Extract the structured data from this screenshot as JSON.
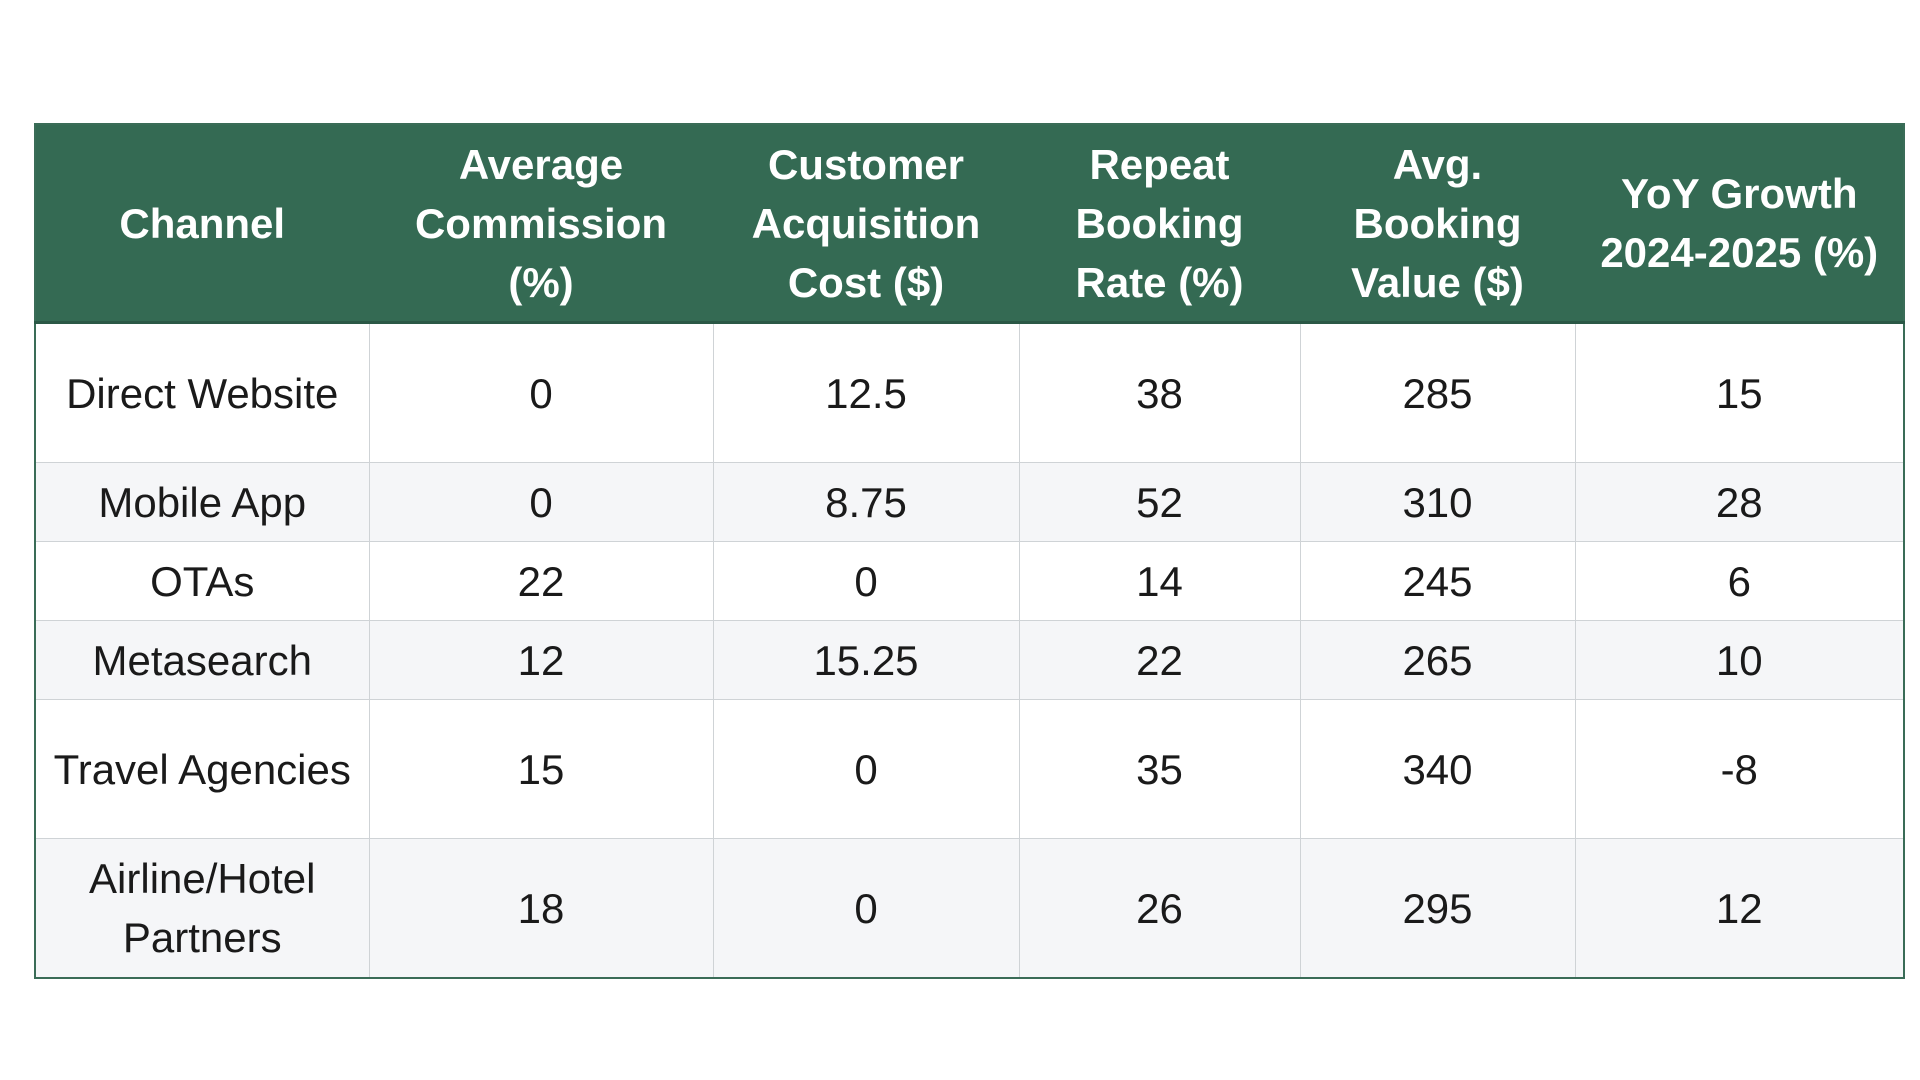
{
  "chart_data": {
    "type": "table",
    "columns": [
      "Channel",
      "Average Commission (%)",
      "Customer Acquisition Cost ($)",
      "Repeat Booking Rate (%)",
      "Avg. Booking Value ($)",
      "YoY Growth 2024-2025 (%)"
    ],
    "rows": [
      [
        "Direct Website",
        "0",
        "12.5",
        "38",
        "285",
        "15"
      ],
      [
        "Mobile App",
        "0",
        "8.75",
        "52",
        "310",
        "28"
      ],
      [
        "OTAs",
        "22",
        "0",
        "14",
        "245",
        "6"
      ],
      [
        "Metasearch",
        "12",
        "15.25",
        "22",
        "265",
        "10"
      ],
      [
        "Travel Agencies",
        "15",
        "0",
        "35",
        "340",
        "-8"
      ],
      [
        "Airline/Hotel Partners",
        "18",
        "0",
        "26",
        "295",
        "12"
      ]
    ],
    "colors": {
      "header_background": "#346a53",
      "header_text": "#ffffff",
      "row_alt_background": "#f5f6f8"
    }
  }
}
